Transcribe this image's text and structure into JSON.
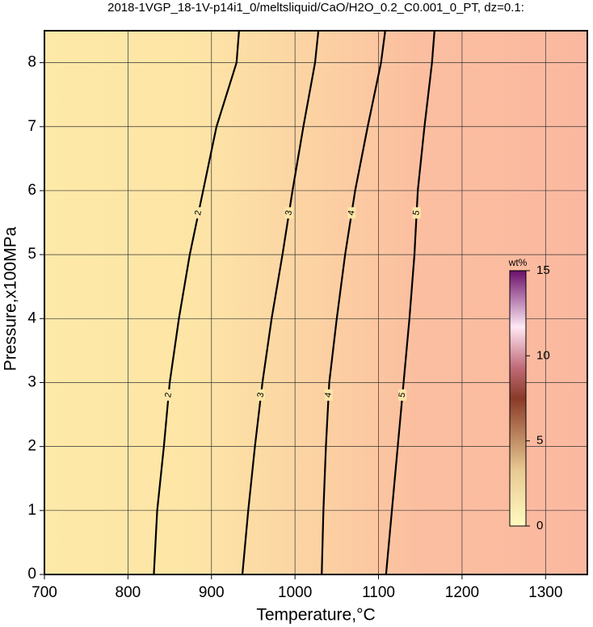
{
  "chart_data": {
    "type": "contour",
    "title": "2018-1VGP_18-1V-p14i1_0/meltsliquid/CaO/H2O_0.2_C0.001_0_PT, dz=0.1:",
    "x_label": "Temperature,°C",
    "y_label": "Pressure,x100MPa",
    "xlim": [
      700,
      1350
    ],
    "ylim": [
      0,
      8.5
    ],
    "xticks": [
      700,
      800,
      900,
      1000,
      1100,
      1200,
      1300
    ],
    "yticks": [
      0,
      1,
      2,
      3,
      4,
      5,
      6,
      7,
      8
    ],
    "grid": true,
    "y": [
      0,
      1,
      2,
      3,
      4,
      5,
      6,
      7,
      8,
      8.5
    ],
    "series": [
      {
        "name": "2",
        "color": "#000000",
        "values": [
          831,
          835,
          843,
          850,
          861,
          874,
          890,
          906,
          930,
          933
        ]
      },
      {
        "name": "3",
        "color": "#000000",
        "values": [
          937,
          944,
          952,
          961,
          972,
          985,
          997,
          1010,
          1024,
          1028
        ]
      },
      {
        "name": "4",
        "color": "#000000",
        "values": [
          1032,
          1034,
          1037,
          1041,
          1050,
          1060,
          1072,
          1087,
          1103,
          1108
        ]
      },
      {
        "name": "5",
        "color": "#000000",
        "values": [
          1109,
          1116,
          1123,
          1130,
          1137,
          1143,
          1147,
          1155,
          1164,
          1167
        ]
      }
    ],
    "colorbar": {
      "label": "wt%",
      "lim": [
        0,
        15
      ],
      "ticks": [
        0,
        5,
        10,
        15
      ]
    }
  }
}
